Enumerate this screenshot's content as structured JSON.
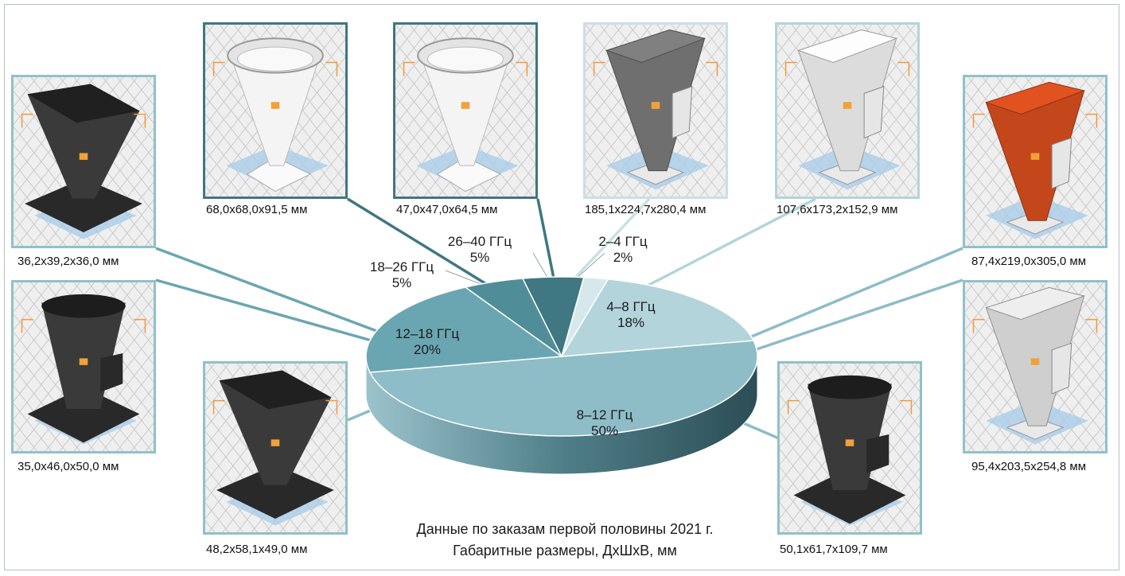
{
  "chart_data": {
    "type": "pie",
    "slices": [
      {
        "label": "8–12 ГГц",
        "value": 50,
        "value_label": "50%",
        "color": "#8ebcc7"
      },
      {
        "label": "12–18 ГГц",
        "value": 20,
        "value_label": "20%",
        "color": "#6aa6b2"
      },
      {
        "label": "18–26 ГГц",
        "value": 5,
        "value_label": "5%",
        "color": "#4f8d99"
      },
      {
        "label": "26–40 ГГц",
        "value": 5,
        "value_label": "5%",
        "color": "#3f7782"
      },
      {
        "label": "2–4 ГГц",
        "value": 2,
        "value_label": "2%",
        "color": "#d7e8ec"
      },
      {
        "label": "4–8 ГГц",
        "value": 18,
        "value_label": "18%",
        "color": "#b3d4db"
      }
    ],
    "caption_line1": "Данные по заказам первой половины 2021 г.",
    "caption_line2": "Габаритные размеры, ДхШхВ, мм"
  },
  "items": [
    {
      "dims": "36,2x39,2x36,0 мм",
      "color": "#3a3a3a",
      "shape": "pyramid-horn"
    },
    {
      "dims": "35,0x46,0x50,0 мм",
      "color": "#3a3a3a",
      "shape": "octagonal-horn"
    },
    {
      "dims": "68,0x68,0x91,5 мм",
      "color": "#f4f4f4",
      "shape": "conical-horn"
    },
    {
      "dims": "47,0x47,0x64,5 мм",
      "color": "#f4f4f4",
      "shape": "conical-horn"
    },
    {
      "dims": "48,2x58,1x49,0 мм",
      "color": "#3a3a3a",
      "shape": "pyramid-horn"
    },
    {
      "dims": "185,1x224,7x280,4 мм",
      "color": "#6f6f6f",
      "shape": "ridged-horn"
    },
    {
      "dims": "107,6x173,2x152,9 мм",
      "color": "#dcdcdc",
      "shape": "ridged-horn"
    },
    {
      "dims": "87,4x219,0x305,0 мм",
      "color": "#c4471c",
      "shape": "ridged-horn"
    },
    {
      "dims": "95,4x203,5x254,8 мм",
      "color": "#cfcfcf",
      "shape": "ridged-horn"
    },
    {
      "dims": "50,1x61,7x109,7 мм",
      "color": "#3a3a3a",
      "shape": "octagonal-horn"
    }
  ]
}
